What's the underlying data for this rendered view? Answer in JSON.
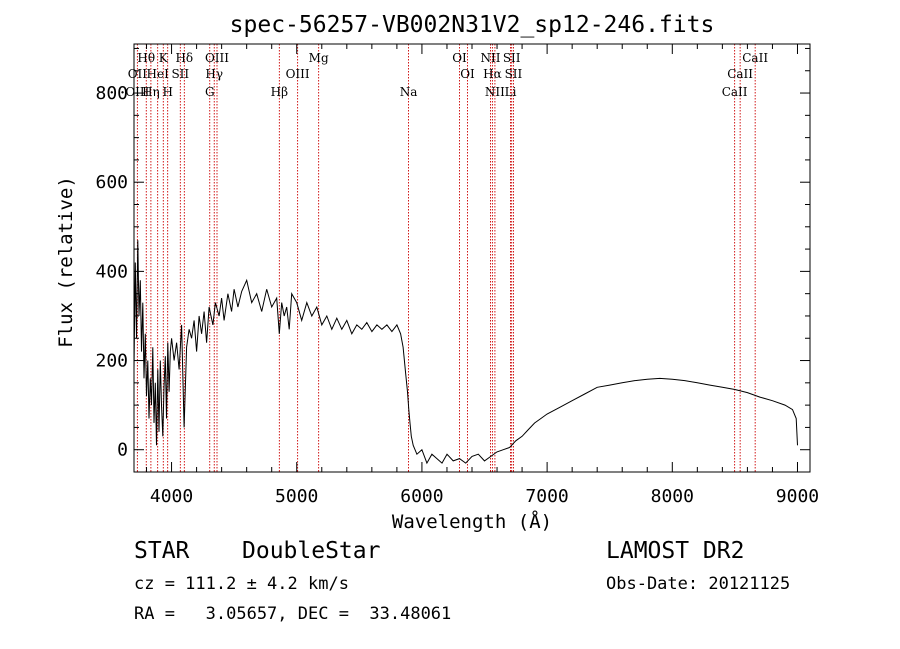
{
  "chart_data": {
    "type": "line",
    "title": "spec-56257-VB002N31V2_sp12-246.fits",
    "xlabel": "Wavelength (Å)",
    "ylabel": "Flux (relative)",
    "xlim": [
      3700,
      9100
    ],
    "ylim": [
      -50,
      910
    ],
    "xticks": [
      4000,
      5000,
      6000,
      7000,
      8000,
      9000
    ],
    "yticks": [
      0,
      200,
      400,
      600,
      800
    ],
    "grid": false,
    "series": [
      {
        "points": [
          [
            3700,
            180
          ],
          [
            3710,
            420
          ],
          [
            3720,
            250
          ],
          [
            3730,
            470
          ],
          [
            3740,
            300
          ],
          [
            3750,
            380
          ],
          [
            3760,
            220
          ],
          [
            3770,
            330
          ],
          [
            3780,
            160
          ],
          [
            3790,
            260
          ],
          [
            3800,
            120
          ],
          [
            3810,
            200
          ],
          [
            3820,
            70
          ],
          [
            3830,
            160
          ],
          [
            3840,
            100
          ],
          [
            3850,
            230
          ],
          [
            3860,
            60
          ],
          [
            3870,
            150
          ],
          [
            3880,
            10
          ],
          [
            3890,
            180
          ],
          [
            3900,
            40
          ],
          [
            3910,
            200
          ],
          [
            3920,
            100
          ],
          [
            3930,
            30
          ],
          [
            3940,
            140
          ],
          [
            3950,
            210
          ],
          [
            3960,
            70
          ],
          [
            3970,
            240
          ],
          [
            3980,
            130
          ],
          [
            3990,
            220
          ],
          [
            4000,
            250
          ],
          [
            4020,
            200
          ],
          [
            4040,
            240
          ],
          [
            4060,
            180
          ],
          [
            4080,
            280
          ],
          [
            4100,
            50
          ],
          [
            4120,
            230
          ],
          [
            4140,
            270
          ],
          [
            4160,
            250
          ],
          [
            4180,
            290
          ],
          [
            4200,
            220
          ],
          [
            4220,
            300
          ],
          [
            4240,
            260
          ],
          [
            4260,
            310
          ],
          [
            4280,
            240
          ],
          [
            4300,
            320
          ],
          [
            4330,
            280
          ],
          [
            4350,
            330
          ],
          [
            4380,
            300
          ],
          [
            4400,
            340
          ],
          [
            4420,
            290
          ],
          [
            4450,
            350
          ],
          [
            4480,
            310
          ],
          [
            4500,
            360
          ],
          [
            4530,
            320
          ],
          [
            4560,
            355
          ],
          [
            4600,
            380
          ],
          [
            4640,
            330
          ],
          [
            4680,
            350
          ],
          [
            4720,
            310
          ],
          [
            4760,
            360
          ],
          [
            4800,
            320
          ],
          [
            4840,
            340
          ],
          [
            4861,
            260
          ],
          [
            4880,
            330
          ],
          [
            4900,
            300
          ],
          [
            4920,
            320
          ],
          [
            4940,
            270
          ],
          [
            4960,
            350
          ],
          [
            5000,
            330
          ],
          [
            5040,
            290
          ],
          [
            5080,
            330
          ],
          [
            5120,
            300
          ],
          [
            5160,
            320
          ],
          [
            5200,
            280
          ],
          [
            5240,
            300
          ],
          [
            5280,
            270
          ],
          [
            5320,
            295
          ],
          [
            5360,
            270
          ],
          [
            5400,
            290
          ],
          [
            5440,
            260
          ],
          [
            5480,
            280
          ],
          [
            5520,
            270
          ],
          [
            5560,
            285
          ],
          [
            5600,
            265
          ],
          [
            5640,
            280
          ],
          [
            5680,
            270
          ],
          [
            5720,
            280
          ],
          [
            5760,
            265
          ],
          [
            5800,
            280
          ],
          [
            5830,
            260
          ],
          [
            5850,
            230
          ],
          [
            5870,
            170
          ],
          [
            5885,
            130
          ],
          [
            5895,
            90
          ],
          [
            5905,
            60
          ],
          [
            5915,
            30
          ],
          [
            5930,
            10
          ],
          [
            5960,
            -10
          ],
          [
            6000,
            0
          ],
          [
            6040,
            -30
          ],
          [
            6080,
            -10
          ],
          [
            6120,
            -20
          ],
          [
            6160,
            -30
          ],
          [
            6200,
            -10
          ],
          [
            6250,
            -25
          ],
          [
            6300,
            -20
          ],
          [
            6350,
            -30
          ],
          [
            6400,
            -15
          ],
          [
            6450,
            -10
          ],
          [
            6500,
            -25
          ],
          [
            6550,
            -15
          ],
          [
            6600,
            -5
          ],
          [
            6650,
            0
          ],
          [
            6700,
            5
          ],
          [
            6750,
            20
          ],
          [
            6800,
            30
          ],
          [
            6850,
            45
          ],
          [
            6900,
            60
          ],
          [
            6950,
            70
          ],
          [
            7000,
            80
          ],
          [
            7100,
            95
          ],
          [
            7200,
            110
          ],
          [
            7300,
            125
          ],
          [
            7400,
            140
          ],
          [
            7500,
            145
          ],
          [
            7600,
            150
          ],
          [
            7700,
            155
          ],
          [
            7800,
            158
          ],
          [
            7900,
            160
          ],
          [
            8000,
            158
          ],
          [
            8100,
            155
          ],
          [
            8200,
            150
          ],
          [
            8300,
            145
          ],
          [
            8400,
            140
          ],
          [
            8500,
            135
          ],
          [
            8600,
            128
          ],
          [
            8700,
            118
          ],
          [
            8800,
            110
          ],
          [
            8900,
            100
          ],
          [
            8960,
            90
          ],
          [
            8990,
            70
          ],
          [
            9000,
            10
          ]
        ]
      }
    ],
    "line_labels": [
      {
        "text": "Hθ",
        "x": 3798,
        "row": 1
      },
      {
        "text": "OII",
        "x": 3727,
        "row": 2
      },
      {
        "text": "OIII",
        "x": 3727,
        "row": 3
      },
      {
        "text": "K",
        "x": 3934,
        "row": 1
      },
      {
        "text": "HeI",
        "x": 3889,
        "row": 2
      },
      {
        "text": "Hη",
        "x": 3835,
        "row": 3
      },
      {
        "text": "Hδ",
        "x": 4102,
        "row": 1
      },
      {
        "text": "SII",
        "x": 4070,
        "row": 2
      },
      {
        "text": "H",
        "x": 3969,
        "row": 3
      },
      {
        "text": "OIII",
        "x": 4363,
        "row": 1
      },
      {
        "text": "Hγ",
        "x": 4341,
        "row": 2
      },
      {
        "text": "G",
        "x": 4305,
        "row": 3
      },
      {
        "text": "Mg",
        "x": 5175,
        "row": 1
      },
      {
        "text": "OIII",
        "x": 5007,
        "row": 2
      },
      {
        "text": "Hβ",
        "x": 4861,
        "row": 3
      },
      {
        "text": "Na",
        "x": 5893,
        "row": 3
      },
      {
        "text": "OI",
        "x": 6300,
        "row": 1
      },
      {
        "text": "OI",
        "x": 6364,
        "row": 2
      },
      {
        "text": "NII",
        "x": 6548,
        "row": 1
      },
      {
        "text": "SII",
        "x": 6717,
        "row": 1
      },
      {
        "text": "Hα",
        "x": 6563,
        "row": 2
      },
      {
        "text": "SII",
        "x": 6731,
        "row": 2
      },
      {
        "text": "NII",
        "x": 6583,
        "row": 3
      },
      {
        "text": "Li",
        "x": 6708,
        "row": 3
      },
      {
        "text": "CaII",
        "x": 8662,
        "row": 1
      },
      {
        "text": "CaII",
        "x": 8542,
        "row": 2
      },
      {
        "text": "CaII",
        "x": 8498,
        "row": 3
      }
    ],
    "line_positions": [
      3727,
      3798,
      3835,
      3889,
      3934,
      3969,
      4070,
      4102,
      4305,
      4341,
      4363,
      4861,
      5007,
      5175,
      5893,
      6300,
      6364,
      6548,
      6563,
      6583,
      6708,
      6717,
      6731,
      8498,
      8542,
      8662
    ],
    "line_color": "#cc0000",
    "spectrum_color": "#000000"
  },
  "info": {
    "object_class": "STAR",
    "subclass": "DoubleStar",
    "survey": "LAMOST DR2",
    "cz": "cz = 111.2 ± 4.2 km/s",
    "obs_date": "Obs-Date: 20121125",
    "coords": "RA =   3.05657, DEC =  33.48061"
  }
}
